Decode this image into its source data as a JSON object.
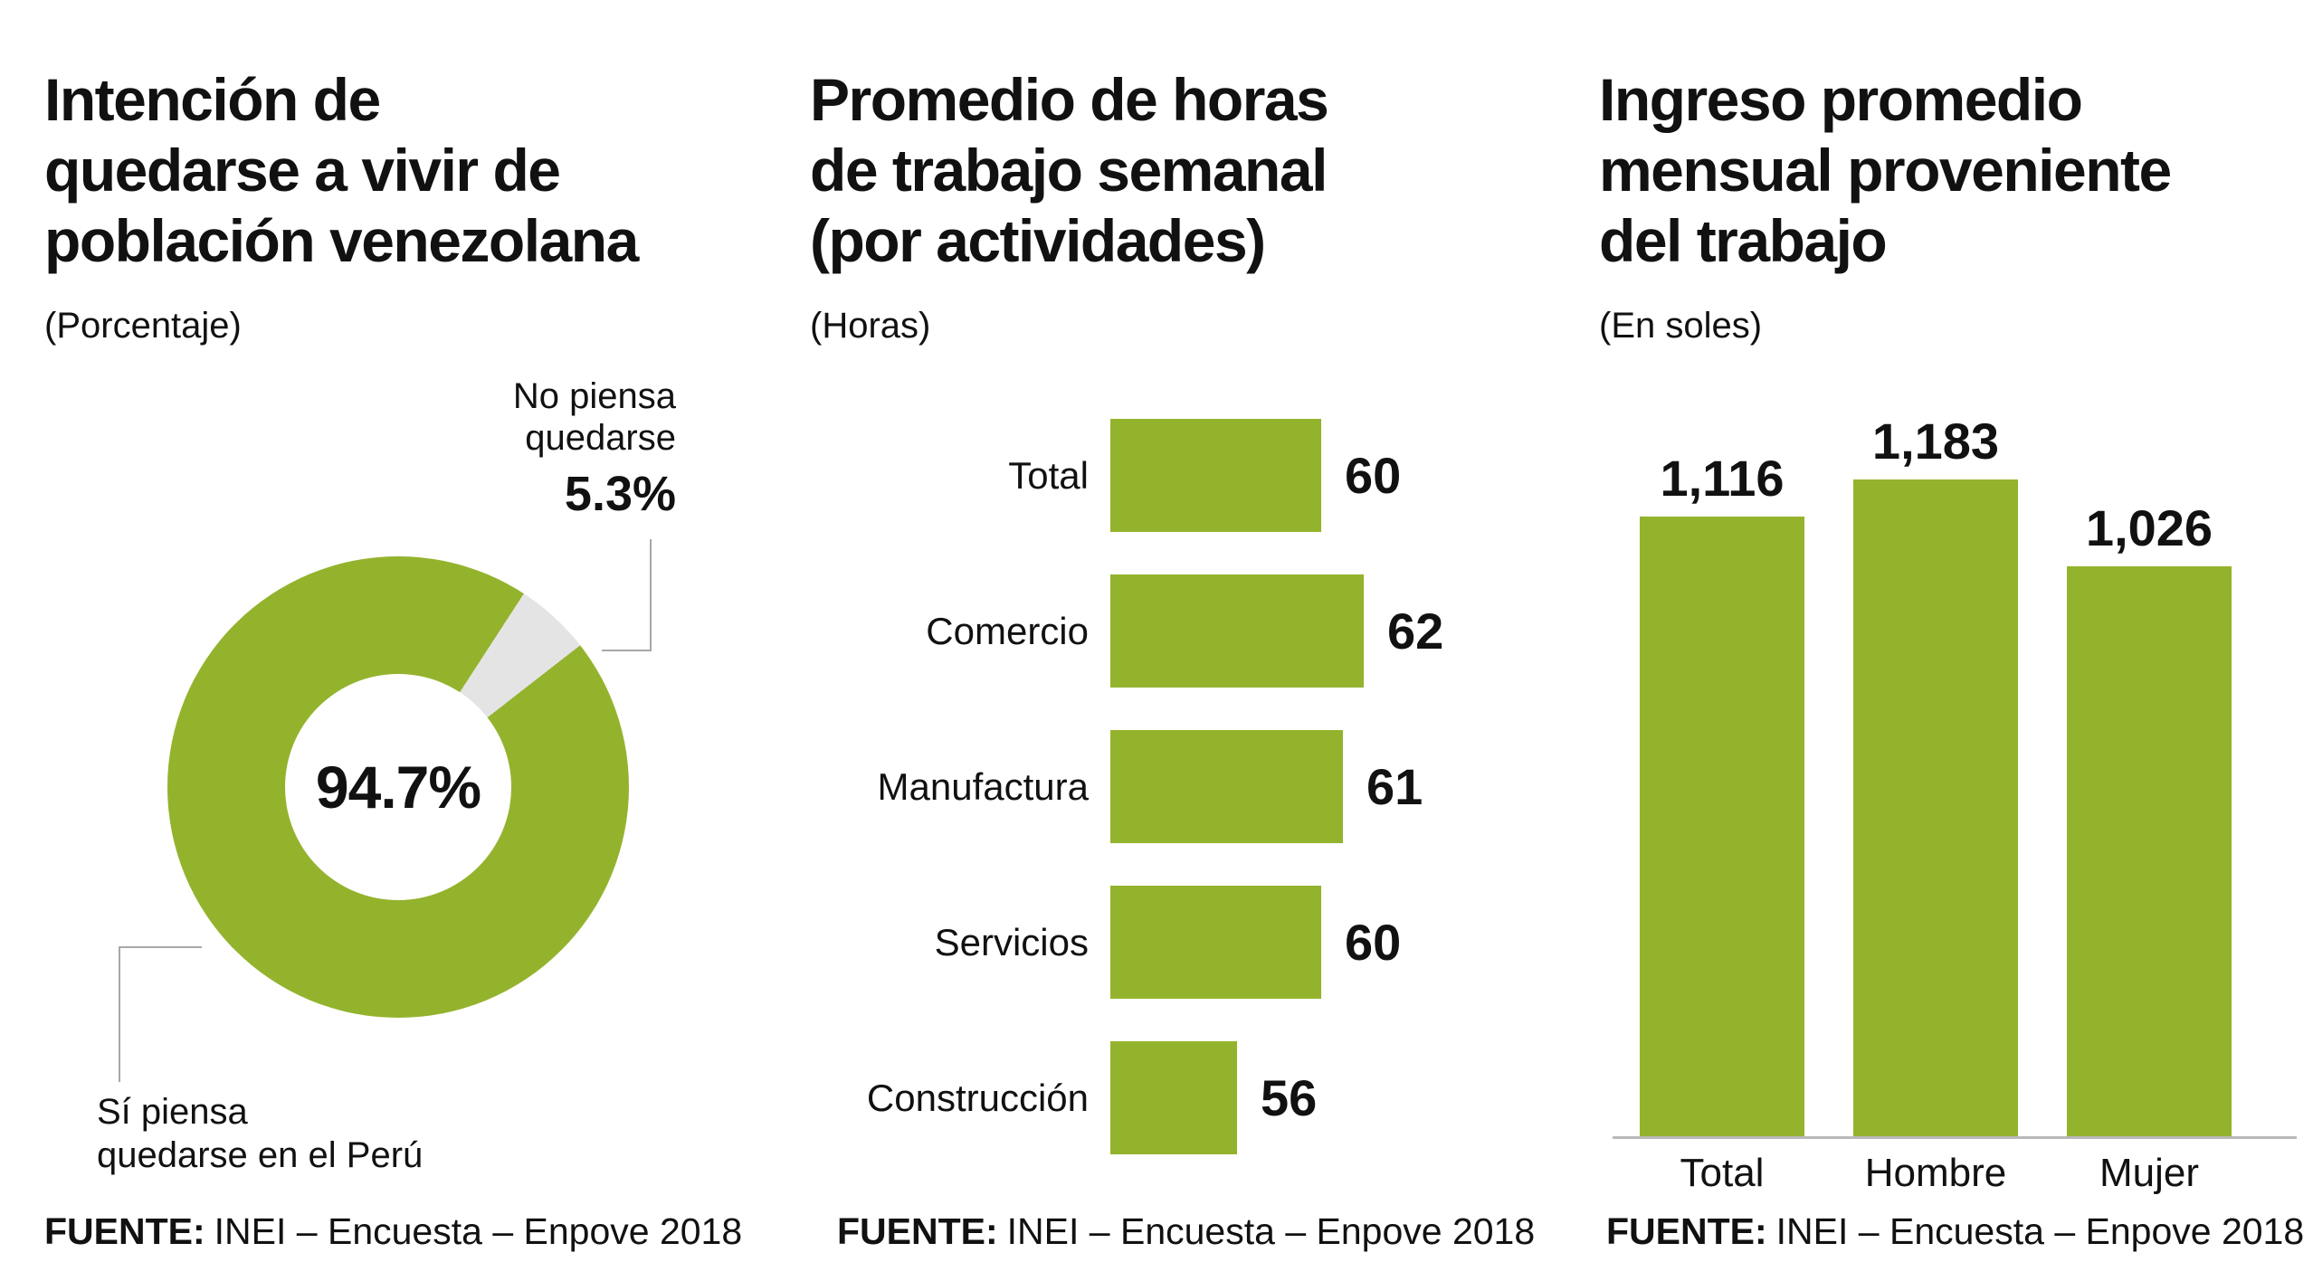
{
  "accent_color": "#94b32d",
  "slice_gray": "#e4e4e4",
  "line_color": "#a8a8a8",
  "text_color": "#111111",
  "chart_data": [
    {
      "type": "pie",
      "style": "donut",
      "title": "Intención de\nquedarse a vivir de\npoblación venezolana",
      "subtitle": "(Porcentaje)",
      "slices": [
        {
          "label": "Sí piensa\nquedarse en el Perú",
          "value": 94.7,
          "value_label": "94.7%",
          "color": "#94b32d"
        },
        {
          "label": "No piensa\nquedarse",
          "value": 5.3,
          "value_label": "5.3%",
          "color": "#e4e4e4"
        }
      ],
      "source_label": "FUENTE:",
      "source_text": "INEI – Encuesta – Enpove 2018"
    },
    {
      "type": "bar",
      "orientation": "horizontal",
      "title": "Promedio de horas\nde trabajo semanal\n(por actividades)",
      "subtitle": "(Horas)",
      "categories": [
        "Total",
        "Comercio",
        "Manufactura",
        "Servicios",
        "Construcción"
      ],
      "values": [
        60,
        62,
        61,
        60,
        56
      ],
      "xlim": [
        50,
        62
      ],
      "grid": false,
      "source_label": "FUENTE:",
      "source_text": "INEI – Encuesta – Enpove 2018"
    },
    {
      "type": "bar",
      "orientation": "vertical",
      "title": "Ingreso promedio\nmensual proveniente\ndel trabajo",
      "subtitle": "(En soles)",
      "categories": [
        "Total",
        "Hombre",
        "Mujer"
      ],
      "values": [
        1116,
        1183,
        1026
      ],
      "value_labels": [
        "1,116",
        "1,183",
        "1,026"
      ],
      "ylim": [
        0,
        1183
      ],
      "grid": false,
      "source_label": "FUENTE:",
      "source_text": "INEI – Encuesta – Enpove 2018"
    }
  ]
}
